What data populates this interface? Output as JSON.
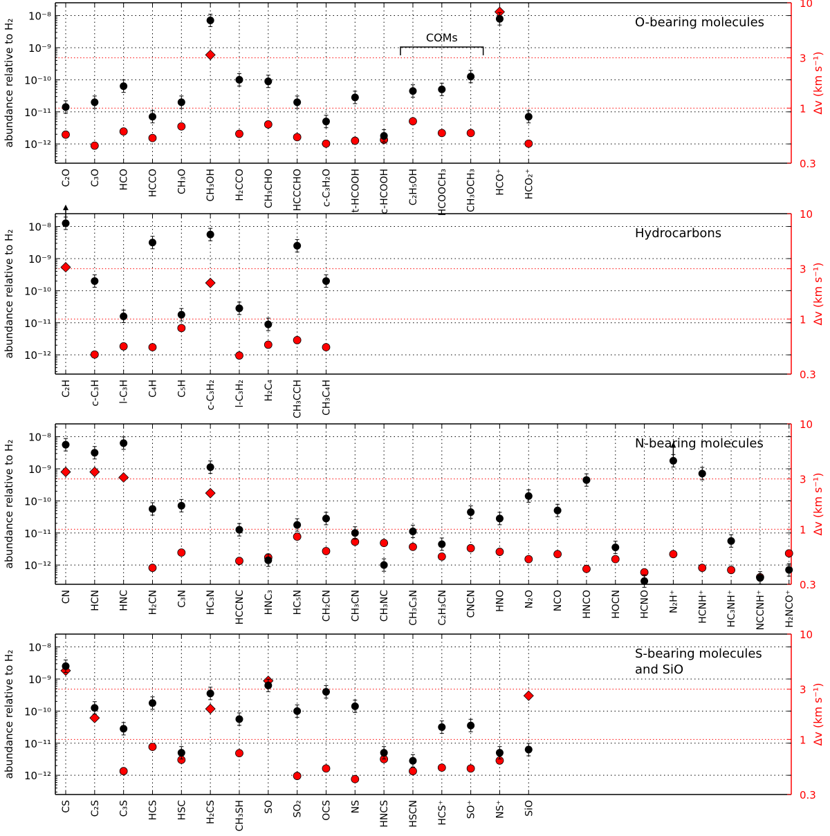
{
  "chart_data": [
    {
      "type": "scatter",
      "title": "O-bearing molecules",
      "ylabel_left": "abundance relative to H₂",
      "ylabel_right": "Δv (km s⁻¹)",
      "ylim_left_log10": [
        -12.6,
        -7.6
      ],
      "ylim_right": [
        0.3,
        10
      ],
      "left_ticks": [
        "10⁻⁸",
        "10⁻⁹",
        "10⁻¹⁰",
        "10⁻¹¹",
        "10⁻¹²"
      ],
      "right_ticks": [
        "10",
        "3",
        "1",
        "0.3"
      ],
      "bracket_label": "COMs",
      "bracket_range": [
        "C₂H₅OH",
        "CH₃OCH₃"
      ],
      "categories": [
        "C₂O",
        "C₃O",
        "HCO",
        "HCCO",
        "CH₃O",
        "CH₃OH",
        "H₂CCO",
        "CH₃CHO",
        "HCCCHO",
        "c-C₃H₂O",
        "t-HCOOH",
        "c-HCOOH",
        "C₂H₅OH",
        "HCOOCH₃",
        "CH₃OCH₃",
        "HCO⁺",
        "HCO₂⁺"
      ],
      "abundance_log10": [
        -10.85,
        -10.7,
        -10.2,
        -11.15,
        -10.7,
        -8.15,
        -10.0,
        -10.05,
        -10.7,
        -11.3,
        -10.55,
        -11.75,
        -10.35,
        -10.3,
        -9.9,
        -8.1,
        -11.15
      ],
      "abundance_limit": [
        false,
        false,
        false,
        false,
        false,
        false,
        false,
        false,
        false,
        false,
        false,
        false,
        false,
        false,
        false,
        false,
        false
      ],
      "linewidth_kms": [
        0.56,
        0.44,
        0.6,
        0.52,
        0.67,
        3.2,
        0.57,
        0.7,
        0.53,
        0.46,
        0.49,
        0.5,
        0.75,
        0.58,
        0.58,
        8.2,
        0.46
      ],
      "linewidth_marker": [
        "circle",
        "circle",
        "circle",
        "circle",
        "circle",
        "diamond",
        "circle",
        "circle",
        "circle",
        "circle",
        "circle",
        "circle",
        "circle",
        "circle",
        "circle",
        "diamond",
        "circle"
      ]
    },
    {
      "type": "scatter",
      "title": "Hydrocarbons",
      "ylabel_left": "abundance relative to H₂",
      "ylabel_right": "Δv (km s⁻¹)",
      "ylim_left_log10": [
        -12.6,
        -7.6
      ],
      "ylim_right": [
        0.3,
        10
      ],
      "left_ticks": [
        "10⁻⁸",
        "10⁻⁹",
        "10⁻¹⁰",
        "10⁻¹¹",
        "10⁻¹²"
      ],
      "right_ticks": [
        "10",
        "3",
        "1",
        "0.3"
      ],
      "categories": [
        "C₂H",
        "c-C₃H",
        "l-C₃H",
        "C₄H",
        "C₅H",
        "c-C₃H₂",
        "l-C₃H₂",
        "H₂C₄",
        "CH₃CCH",
        "CH₃C₄H"
      ],
      "abundance_log10": [
        -7.9,
        -9.7,
        -10.8,
        -8.5,
        -10.75,
        -8.25,
        -10.55,
        -11.05,
        -8.6,
        -9.7
      ],
      "abundance_limit": [
        true,
        false,
        false,
        false,
        false,
        false,
        false,
        false,
        false,
        false
      ],
      "linewidth_kms": [
        3.1,
        0.46,
        0.55,
        0.54,
        0.82,
        2.2,
        0.45,
        0.57,
        0.63,
        0.54
      ],
      "linewidth_marker": [
        "diamond",
        "circle",
        "circle",
        "circle",
        "circle",
        "diamond",
        "circle",
        "circle",
        "circle",
        "circle"
      ]
    },
    {
      "type": "scatter",
      "title": "N-bearing molecules",
      "ylabel_left": "abundance relative to H₂",
      "ylabel_right": "Δv (km s⁻¹)",
      "ylim_left_log10": [
        -12.6,
        -7.6
      ],
      "ylim_right": [
        0.3,
        10
      ],
      "left_ticks": [
        "10⁻⁸",
        "10⁻⁹",
        "10⁻¹⁰",
        "10⁻¹¹",
        "10⁻¹²"
      ],
      "right_ticks": [
        "10",
        "3",
        "1",
        "0.3"
      ],
      "categories": [
        "CN",
        "HCN",
        "HNC",
        "H₂CN",
        "C₃N",
        "HC₃N",
        "HCCNC",
        "HNC₃",
        "HC₅N",
        "CH₂CN",
        "CH₃CN",
        "CH₃NC",
        "CH₃C₃N",
        "C₂H₃CN",
        "CNCN",
        "HNO",
        "N₂O",
        "NCO",
        "HNCO",
        "HOCN",
        "HCNO",
        "N₂H⁺",
        "HCNH⁺",
        "HC₃NH⁺",
        "NCCNH⁺",
        "H₂NCO⁺"
      ],
      "abundance_log10": [
        -8.25,
        -8.5,
        -8.2,
        -10.25,
        -10.15,
        -8.95,
        -10.9,
        -11.85,
        -10.75,
        -10.55,
        -11.0,
        -12.0,
        -10.95,
        -11.35,
        -10.35,
        -10.55,
        -9.85,
        -10.3,
        -9.35,
        -11.45,
        -12.5,
        -8.75,
        -9.15,
        -11.25,
        -12.4,
        -12.15
      ],
      "abundance_limit": [
        false,
        false,
        false,
        false,
        false,
        false,
        false,
        false,
        false,
        false,
        false,
        false,
        false,
        false,
        false,
        false,
        false,
        false,
        false,
        false,
        false,
        true,
        false,
        false,
        false,
        false
      ],
      "linewidth_kms": [
        3.5,
        3.5,
        3.1,
        0.43,
        0.6,
        2.2,
        0.5,
        0.54,
        0.85,
        0.62,
        0.76,
        0.74,
        0.68,
        0.55,
        0.66,
        0.61,
        0.52,
        0.58,
        0.42,
        0.52,
        0.39,
        0.58,
        0.43,
        0.41,
        0.35,
        0.59
      ],
      "linewidth_marker": [
        "diamond",
        "diamond",
        "diamond",
        "circle",
        "circle",
        "diamond",
        "circle",
        "circle",
        "circle",
        "circle",
        "circle",
        "circle",
        "circle",
        "circle",
        "circle",
        "circle",
        "circle",
        "circle",
        "circle",
        "circle",
        "circle",
        "circle",
        "circle",
        "circle",
        "circle",
        "circle"
      ]
    },
    {
      "type": "scatter",
      "title": "S-bearing molecules\nand SiO",
      "title_lines": [
        "S-bearing molecules",
        "and SiO"
      ],
      "ylabel_left": "abundance relative to H₂",
      "ylabel_right": "Δv (km s⁻¹)",
      "ylim_left_log10": [
        -12.6,
        -7.6
      ],
      "ylim_right": [
        0.3,
        10
      ],
      "left_ticks": [
        "10⁻⁸",
        "10⁻⁹",
        "10⁻¹⁰",
        "10⁻¹¹",
        "10⁻¹²"
      ],
      "right_ticks": [
        "10",
        "3",
        "1",
        "0.3"
      ],
      "categories": [
        "CS",
        "C₂S",
        "C₃S",
        "HCS",
        "HSC",
        "H₂CS",
        "CH₃SH",
        "SO",
        "SO₂",
        "OCS",
        "NS",
        "HNCS",
        "HSCN",
        "HCS⁺",
        "SO⁺",
        "NS⁺",
        "SiO"
      ],
      "abundance_log10": [
        -8.6,
        -9.9,
        -10.55,
        -9.75,
        -11.3,
        -9.45,
        -10.25,
        -9.2,
        -10.0,
        -9.4,
        -9.85,
        -11.3,
        -11.55,
        -10.5,
        -10.45,
        -11.3,
        -11.2
      ],
      "abundance_limit": [
        false,
        false,
        false,
        false,
        false,
        false,
        false,
        false,
        false,
        false,
        false,
        false,
        false,
        false,
        false,
        false,
        false
      ],
      "linewidth_kms": [
        4.5,
        1.6,
        0.5,
        0.85,
        0.64,
        1.95,
        0.74,
        3.6,
        0.45,
        0.53,
        0.42,
        0.65,
        0.5,
        0.54,
        0.53,
        0.63,
        2.6
      ],
      "linewidth_marker": [
        "diamond",
        "diamond",
        "circle",
        "circle",
        "circle",
        "diamond",
        "circle",
        "diamond",
        "circle",
        "circle",
        "circle",
        "circle",
        "circle",
        "circle",
        "circle",
        "circle",
        "diamond"
      ]
    }
  ],
  "colors": {
    "abundance": "#000000",
    "linewidth": "#ff0000",
    "grid_black": "#000000",
    "grid_red": "#ff0000",
    "right_axis": "#ff0000"
  }
}
